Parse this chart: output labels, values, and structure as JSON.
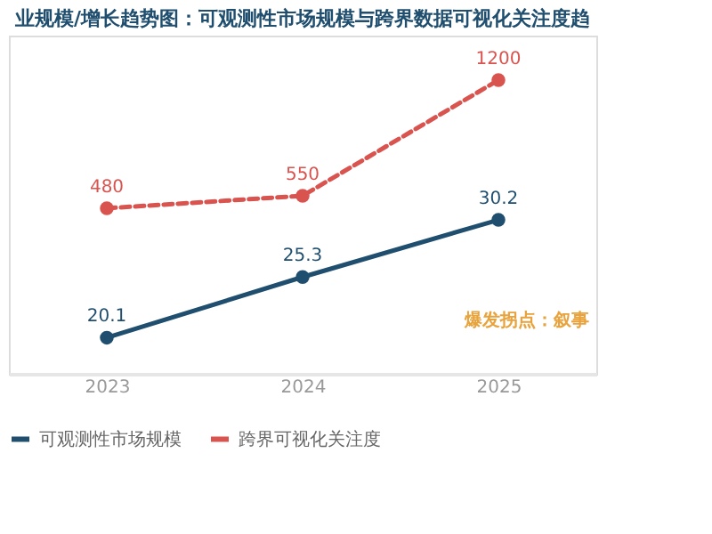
{
  "chart_data": {
    "type": "line",
    "title": "业规模/增长趋势图：可观测性市场规模与跨界数据可视化关注度趋",
    "categories": [
      "2023",
      "2024",
      "2025"
    ],
    "series": [
      {
        "name": "可观测性市场规模",
        "color": "#1f4e6e",
        "values": [
          20.1,
          25.3,
          30.2
        ],
        "line_style": "solid"
      },
      {
        "name": "跨界可视化关注度",
        "color": "#d9534f",
        "values": [
          480,
          550,
          1200
        ],
        "axis": "y2",
        "line_style": "dashed"
      }
    ],
    "ylim": [
      17,
      46
    ],
    "y2lim": [
      -450,
      1450
    ],
    "data_labels": true,
    "marker": "circle",
    "legend": "bottom",
    "grid": false,
    "tick_labels": "x",
    "annotations": [
      "爆发拐点：叙事"
    ]
  }
}
